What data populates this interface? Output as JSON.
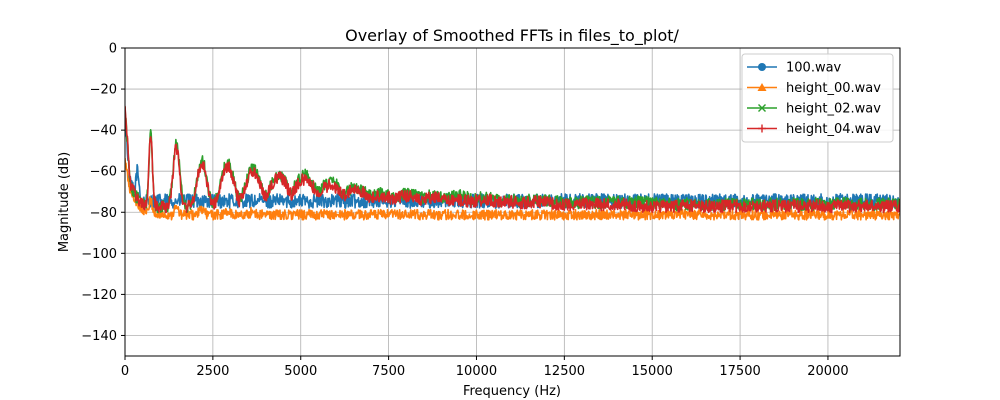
{
  "chart_data": {
    "type": "line",
    "title": "Overlay of Smoothed FFTs in files_to_plot/",
    "xlabel": "Frequency (Hz)",
    "ylabel": "Magnitude (dB)",
    "xlim": [
      0,
      22050
    ],
    "ylim": [
      -150,
      0
    ],
    "x_ticks": [
      0,
      2500,
      5000,
      7500,
      10000,
      12500,
      15000,
      17500,
      20000
    ],
    "x_tick_labels": [
      "0",
      "2500",
      "5000",
      "7500",
      "10000",
      "12500",
      "15000",
      "17500",
      "20000"
    ],
    "y_ticks": [
      0,
      -20,
      -40,
      -60,
      -80,
      -100,
      -120,
      -140
    ],
    "y_tick_labels": [
      "0",
      "−20",
      "−40",
      "−60",
      "−80",
      "−100",
      "−120",
      "−140"
    ],
    "grid": true,
    "legend_position": "top-right",
    "fundamental_hz": 730,
    "series": [
      {
        "name": "100.wav",
        "color": "#1f77b4",
        "marker": "circle",
        "envelope": [
          [
            0,
            -35
          ],
          [
            150,
            -66
          ],
          [
            300,
            -72
          ],
          [
            500,
            -82
          ],
          [
            700,
            -86
          ],
          [
            1000,
            -88
          ],
          [
            1500,
            -89
          ],
          [
            2500,
            -90
          ],
          [
            3500,
            -90
          ],
          [
            5000,
            -89
          ],
          [
            7000,
            -88
          ],
          [
            9000,
            -88
          ],
          [
            11000,
            -87
          ],
          [
            13000,
            -86
          ],
          [
            15000,
            -85
          ],
          [
            17000,
            -84
          ],
          [
            19000,
            -83
          ],
          [
            21000,
            -82
          ],
          [
            22050,
            -82
          ]
        ],
        "peaks": [
          [
            350,
            -60
          ],
          [
            730,
            -80
          ],
          [
            1460,
            -83
          ],
          [
            2190,
            -84
          ],
          [
            2920,
            -85
          ]
        ],
        "spread": 3.5
      },
      {
        "name": "height_00.wav",
        "color": "#ff7f0e",
        "marker": "triangle",
        "envelope": [
          [
            0,
            -55
          ],
          [
            150,
            -70
          ],
          [
            300,
            -74
          ],
          [
            500,
            -79
          ],
          [
            700,
            -81
          ],
          [
            1000,
            -83
          ],
          [
            2000,
            -84
          ],
          [
            3500,
            -85
          ],
          [
            5000,
            -86
          ],
          [
            6500,
            -86
          ],
          [
            8000,
            -86
          ],
          [
            10000,
            -86
          ],
          [
            12000,
            -85
          ],
          [
            14000,
            -85
          ],
          [
            16000,
            -84
          ],
          [
            18000,
            -84
          ],
          [
            20000,
            -83
          ],
          [
            22050,
            -83
          ]
        ],
        "peaks": [
          [
            730,
            -74
          ],
          [
            1460,
            -78
          ],
          [
            2190,
            -79
          ],
          [
            2920,
            -80
          ],
          [
            3650,
            -80
          ]
        ],
        "spread": 2.5
      },
      {
        "name": "height_02.wav",
        "color": "#2ca02c",
        "marker": "x",
        "envelope": [
          [
            0,
            -30
          ],
          [
            150,
            -66
          ],
          [
            300,
            -72
          ],
          [
            500,
            -76
          ],
          [
            700,
            -77
          ],
          [
            1000,
            -78
          ],
          [
            2000,
            -78
          ],
          [
            3500,
            -79
          ],
          [
            5000,
            -79
          ],
          [
            7000,
            -79
          ],
          [
            9000,
            -79
          ],
          [
            11000,
            -79
          ],
          [
            13000,
            -79
          ],
          [
            15000,
            -79
          ],
          [
            18000,
            -79
          ],
          [
            22050,
            -79
          ]
        ],
        "peaks": [
          [
            730,
            -42
          ],
          [
            1460,
            -47
          ],
          [
            2190,
            -55
          ],
          [
            2920,
            -56
          ],
          [
            3650,
            -59
          ],
          [
            4380,
            -62
          ],
          [
            5110,
            -62
          ],
          [
            5840,
            -65
          ],
          [
            6570,
            -68
          ],
          [
            7300,
            -71
          ],
          [
            8030,
            -71
          ],
          [
            8760,
            -72
          ],
          [
            9490,
            -72
          ],
          [
            10220,
            -73
          ],
          [
            10950,
            -74
          ],
          [
            11680,
            -74
          ],
          [
            12410,
            -75
          ],
          [
            13140,
            -75
          ],
          [
            13870,
            -75
          ],
          [
            14600,
            -75
          ],
          [
            15330,
            -76
          ],
          [
            16060,
            -76
          ],
          [
            16790,
            -76
          ],
          [
            17520,
            -76
          ],
          [
            18250,
            -76
          ],
          [
            18980,
            -76
          ],
          [
            19710,
            -76
          ],
          [
            20440,
            -76
          ],
          [
            21170,
            -76
          ],
          [
            21900,
            -76
          ]
        ],
        "spread": 3
      },
      {
        "name": "height_04.wav",
        "color": "#d62728",
        "marker": "plus",
        "envelope": [
          [
            0,
            -29
          ],
          [
            150,
            -66
          ],
          [
            300,
            -72
          ],
          [
            500,
            -76
          ],
          [
            700,
            -77
          ],
          [
            1000,
            -78
          ],
          [
            2000,
            -78
          ],
          [
            3500,
            -79
          ],
          [
            5000,
            -79
          ],
          [
            7000,
            -80
          ],
          [
            9000,
            -80
          ],
          [
            11000,
            -80
          ],
          [
            13000,
            -80
          ],
          [
            15000,
            -80
          ],
          [
            18000,
            -80
          ],
          [
            22050,
            -80
          ]
        ],
        "peaks": [
          [
            730,
            -43
          ],
          [
            1460,
            -49
          ],
          [
            2190,
            -56
          ],
          [
            2920,
            -58
          ],
          [
            3650,
            -60
          ],
          [
            4380,
            -63
          ],
          [
            5110,
            -64
          ],
          [
            5840,
            -67
          ],
          [
            6570,
            -69
          ],
          [
            7300,
            -72
          ],
          [
            8030,
            -72
          ],
          [
            8760,
            -73
          ],
          [
            9490,
            -74
          ],
          [
            10220,
            -74
          ],
          [
            10950,
            -75
          ],
          [
            11680,
            -75
          ],
          [
            12410,
            -76
          ],
          [
            13140,
            -76
          ],
          [
            13870,
            -76
          ],
          [
            14600,
            -77
          ],
          [
            15330,
            -77
          ],
          [
            16060,
            -77
          ],
          [
            16790,
            -77
          ],
          [
            17520,
            -77
          ],
          [
            18250,
            -77
          ],
          [
            18980,
            -77
          ],
          [
            19710,
            -77
          ],
          [
            20440,
            -77
          ],
          [
            21170,
            -77
          ],
          [
            21900,
            -77
          ]
        ],
        "spread": 3
      }
    ]
  }
}
